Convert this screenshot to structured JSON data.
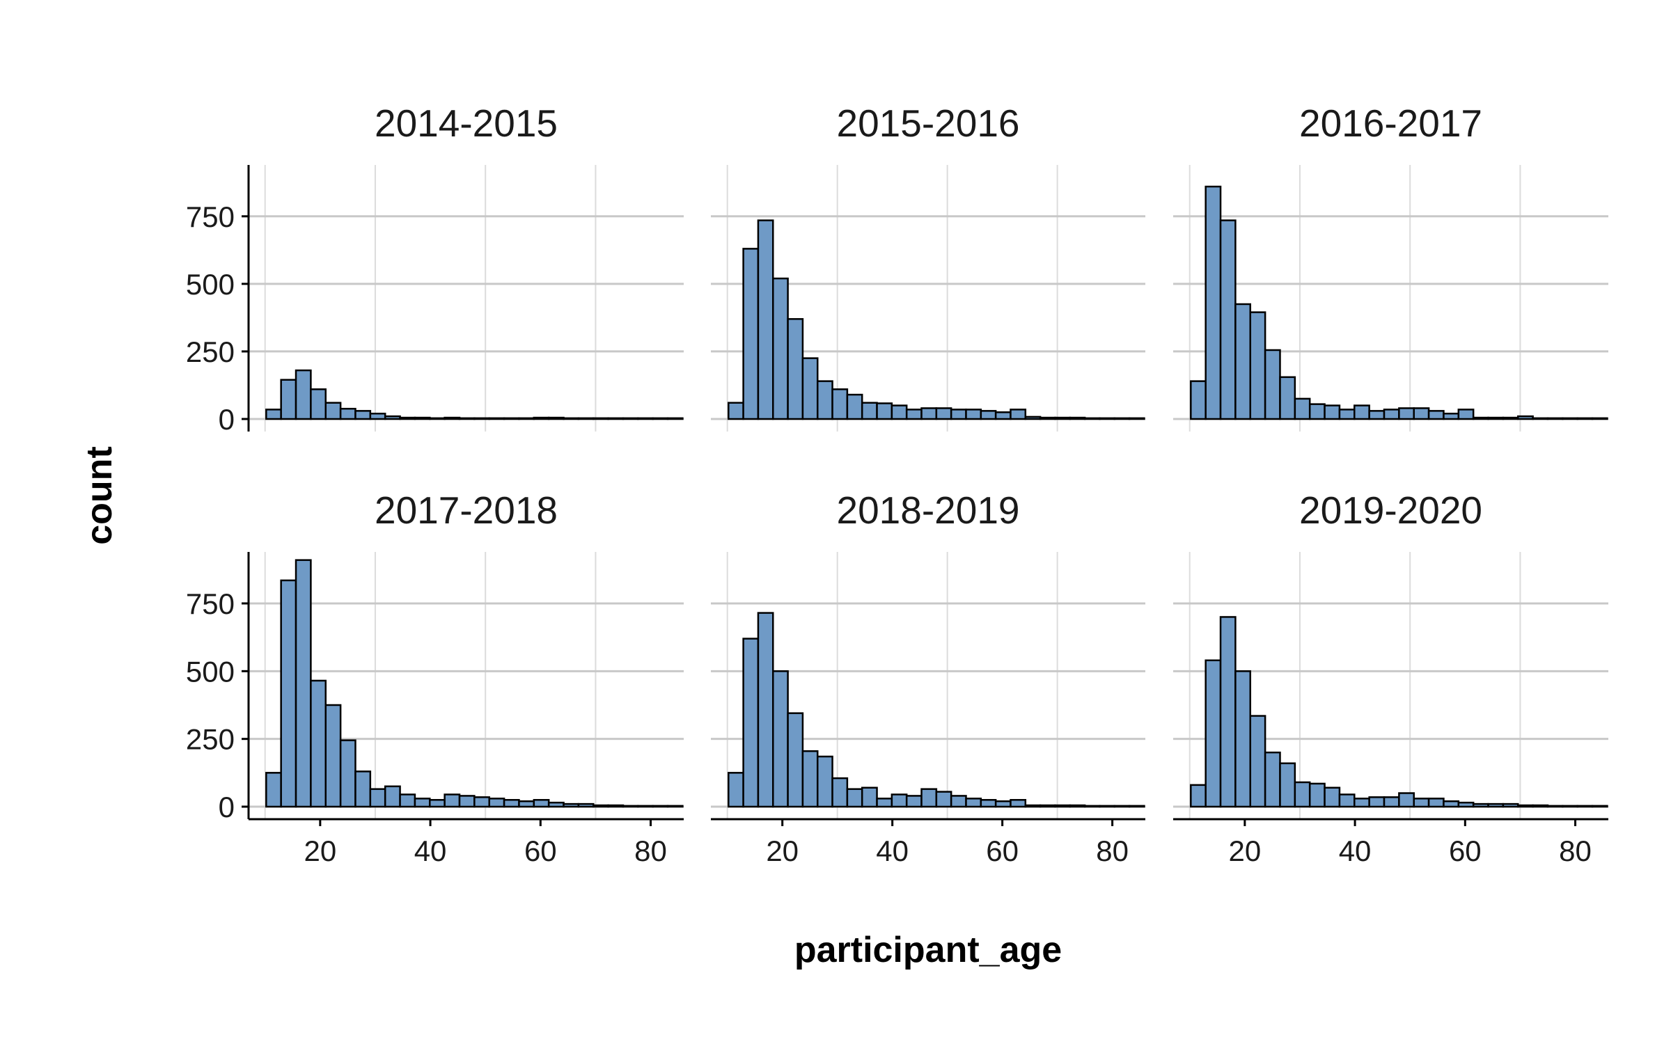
{
  "chart_data": {
    "type": "bar",
    "subtype": "faceted-histogram",
    "xlabel": "participant_age",
    "ylabel": "count",
    "xlim": [
      7,
      86
    ],
    "ylim": [
      0,
      940
    ],
    "x_ticks": [
      20,
      40,
      60,
      80
    ],
    "y_ticks": [
      0,
      250,
      500,
      750
    ],
    "grid": true,
    "bar_color": "#6f9ac6",
    "bar_edge_color": "#000000",
    "bin_start": 7.5,
    "bin_width": 2.7,
    "facets": [
      {
        "title": "2014-2015",
        "values": [
          0,
          35,
          145,
          180,
          110,
          60,
          38,
          30,
          20,
          10,
          5,
          5,
          3,
          5,
          3,
          3,
          3,
          3,
          3,
          5,
          5,
          3,
          3,
          3,
          3,
          3,
          3,
          3,
          3
        ]
      },
      {
        "title": "2015-2016",
        "values": [
          0,
          60,
          630,
          735,
          520,
          370,
          225,
          140,
          110,
          90,
          60,
          58,
          50,
          35,
          40,
          40,
          35,
          35,
          30,
          25,
          35,
          8,
          5,
          5,
          5,
          3,
          3,
          3,
          3
        ]
      },
      {
        "title": "2016-2017",
        "values": [
          0,
          140,
          860,
          735,
          425,
          395,
          255,
          155,
          75,
          55,
          50,
          35,
          50,
          30,
          35,
          40,
          40,
          30,
          20,
          35,
          5,
          5,
          5,
          10,
          3,
          3,
          3,
          3,
          3
        ]
      },
      {
        "title": "2017-2018",
        "values": [
          0,
          125,
          835,
          910,
          465,
          375,
          245,
          130,
          65,
          75,
          45,
          30,
          25,
          45,
          40,
          35,
          30,
          25,
          20,
          25,
          15,
          10,
          10,
          5,
          5,
          3,
          3,
          3,
          3
        ]
      },
      {
        "title": "2018-2019",
        "values": [
          0,
          125,
          620,
          715,
          500,
          345,
          205,
          185,
          105,
          65,
          70,
          30,
          45,
          40,
          65,
          55,
          40,
          30,
          25,
          20,
          25,
          5,
          5,
          5,
          5,
          3,
          3,
          3,
          3
        ]
      },
      {
        "title": "2019-2020",
        "values": [
          0,
          80,
          540,
          700,
          500,
          335,
          200,
          160,
          90,
          85,
          70,
          45,
          30,
          35,
          35,
          50,
          30,
          30,
          20,
          15,
          10,
          10,
          10,
          5,
          5,
          3,
          3,
          3,
          3
        ]
      }
    ]
  }
}
